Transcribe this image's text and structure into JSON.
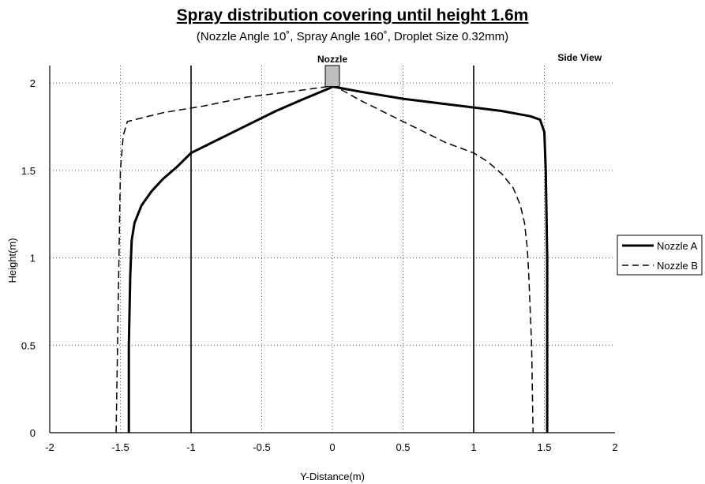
{
  "chart_data": {
    "type": "line",
    "title": "Spray distribution covering until height 1.6m",
    "subtitle": "(Nozzle Angle 10˚, Spray Angle 160˚, Droplet Size 0.32mm)",
    "xlabel": "Y-Distance(m)",
    "ylabel": "Height(m)",
    "xlim": [
      -2,
      2
    ],
    "ylim": [
      0,
      2.1
    ],
    "xticks": [
      "-2",
      "-1.5",
      "-1",
      "-0.5",
      "0",
      "0.5",
      "1",
      "1.5",
      "2"
    ],
    "yticks": [
      "0",
      "0.5",
      "1",
      "1.5",
      "2"
    ],
    "grid": "dotted",
    "legend_position": "right",
    "annotations": {
      "nozzle": "Nozzle",
      "view": "Side View"
    },
    "nozzle_box": {
      "x": [
        -0.05,
        0.05
      ],
      "y": [
        1.98,
        2.1
      ]
    },
    "series": [
      {
        "name": "Nozzle A",
        "style": "solid",
        "x": [
          -1.44,
          -1.44,
          -1.43,
          -1.42,
          -1.4,
          -1.35,
          -1.28,
          -1.2,
          -1.1,
          -1.0,
          -0.8,
          -0.6,
          -0.4,
          -0.2,
          -0.02,
          0.0,
          0.2,
          0.5,
          0.8,
          1.0,
          1.2,
          1.4,
          1.47,
          1.5,
          1.51,
          1.52,
          1.52
        ],
        "y": [
          0.0,
          0.5,
          0.9,
          1.1,
          1.2,
          1.3,
          1.38,
          1.45,
          1.52,
          1.6,
          1.68,
          1.76,
          1.84,
          1.91,
          1.97,
          1.98,
          1.95,
          1.91,
          1.88,
          1.86,
          1.84,
          1.81,
          1.79,
          1.72,
          1.5,
          1.0,
          0.0
        ]
      },
      {
        "name": "Nozzle B",
        "style": "dashed",
        "x": [
          -1.53,
          -1.52,
          -1.51,
          -1.5,
          -1.48,
          -1.45,
          -1.2,
          -0.9,
          -0.6,
          -0.3,
          -0.03,
          0.0,
          0.2,
          0.5,
          0.8,
          1.0,
          1.1,
          1.2,
          1.28,
          1.33,
          1.36,
          1.38,
          1.39,
          1.41,
          1.42
        ],
        "y": [
          0.0,
          0.5,
          1.0,
          1.5,
          1.7,
          1.78,
          1.83,
          1.87,
          1.92,
          1.95,
          1.98,
          1.99,
          1.9,
          1.78,
          1.66,
          1.6,
          1.55,
          1.48,
          1.4,
          1.3,
          1.2,
          1.05,
          0.9,
          0.5,
          0.0
        ]
      }
    ]
  }
}
